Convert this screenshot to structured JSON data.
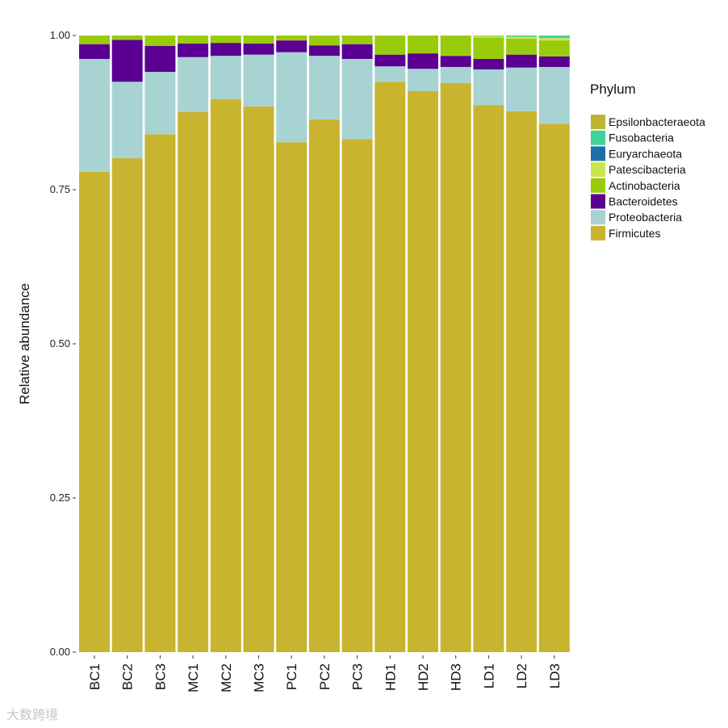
{
  "chart_data": {
    "type": "bar",
    "stacked": true,
    "title": "",
    "xlabel": "",
    "ylabel": "Relative abundance",
    "ylim": [
      0,
      1
    ],
    "yticks": [
      0,
      0.25,
      0.5,
      0.75,
      1.0
    ],
    "ytick_labels": [
      "0.00",
      "0.25",
      "0.50",
      "0.75",
      "1.00"
    ],
    "categories": [
      "BC1",
      "BC2",
      "BC3",
      "MC1",
      "MC2",
      "MC3",
      "PC1",
      "PC2",
      "PC3",
      "HD1",
      "HD2",
      "HD3",
      "LD1",
      "LD2",
      "LD3"
    ],
    "legend": {
      "title": "Phylum",
      "position": "right"
    },
    "series": [
      {
        "name": "Firmicutes",
        "color": "#C9B42F",
        "values": [
          0.779,
          0.801,
          0.84,
          0.876,
          0.897,
          0.885,
          0.827,
          0.864,
          0.832,
          0.925,
          0.91,
          0.923,
          0.887,
          0.877,
          0.857
        ]
      },
      {
        "name": "Proteobacteria",
        "color": "#A8D3D3",
        "values": [
          0.183,
          0.124,
          0.101,
          0.089,
          0.07,
          0.084,
          0.146,
          0.103,
          0.13,
          0.025,
          0.036,
          0.026,
          0.058,
          0.071,
          0.092
        ]
      },
      {
        "name": "Bacteroidetes",
        "color": "#5B0092",
        "values": [
          0.024,
          0.068,
          0.042,
          0.022,
          0.021,
          0.018,
          0.019,
          0.017,
          0.024,
          0.019,
          0.025,
          0.018,
          0.017,
          0.021,
          0.017
        ]
      },
      {
        "name": "Actinobacteria",
        "color": "#9ACB0A",
        "values": [
          0.014,
          0.007,
          0.017,
          0.013,
          0.012,
          0.013,
          0.008,
          0.016,
          0.014,
          0.031,
          0.029,
          0.033,
          0.035,
          0.026,
          0.026
        ]
      },
      {
        "name": "Patescibacteria",
        "color": "#CCE54E",
        "values": [
          0,
          0,
          0,
          0,
          0,
          0,
          0,
          0,
          0,
          0,
          0,
          0,
          0.002,
          0.003,
          0.004
        ]
      },
      {
        "name": "Euryarchaeota",
        "color": "#1D6FA8",
        "values": [
          0,
          0,
          0,
          0,
          0,
          0,
          0,
          0,
          0,
          0,
          0,
          0,
          0,
          0,
          0
        ]
      },
      {
        "name": "Fusobacteria",
        "color": "#3DD39B",
        "values": [
          0,
          0,
          0,
          0,
          0,
          0,
          0,
          0,
          0,
          0,
          0,
          0,
          0.001,
          0.002,
          0.004
        ]
      },
      {
        "name": "Epsilonbacteraeota",
        "color": "#BDB52F",
        "values": [
          0,
          0,
          0,
          0,
          0,
          0,
          0,
          0,
          0,
          0,
          0,
          0,
          0,
          0,
          0
        ]
      }
    ],
    "legend_order": [
      "Epsilonbacteraeota",
      "Fusobacteria",
      "Euryarchaeota",
      "Patescibacteria",
      "Actinobacteria",
      "Bacteroidetes",
      "Proteobacteria",
      "Firmicutes"
    ]
  },
  "watermark": "大数跨境"
}
